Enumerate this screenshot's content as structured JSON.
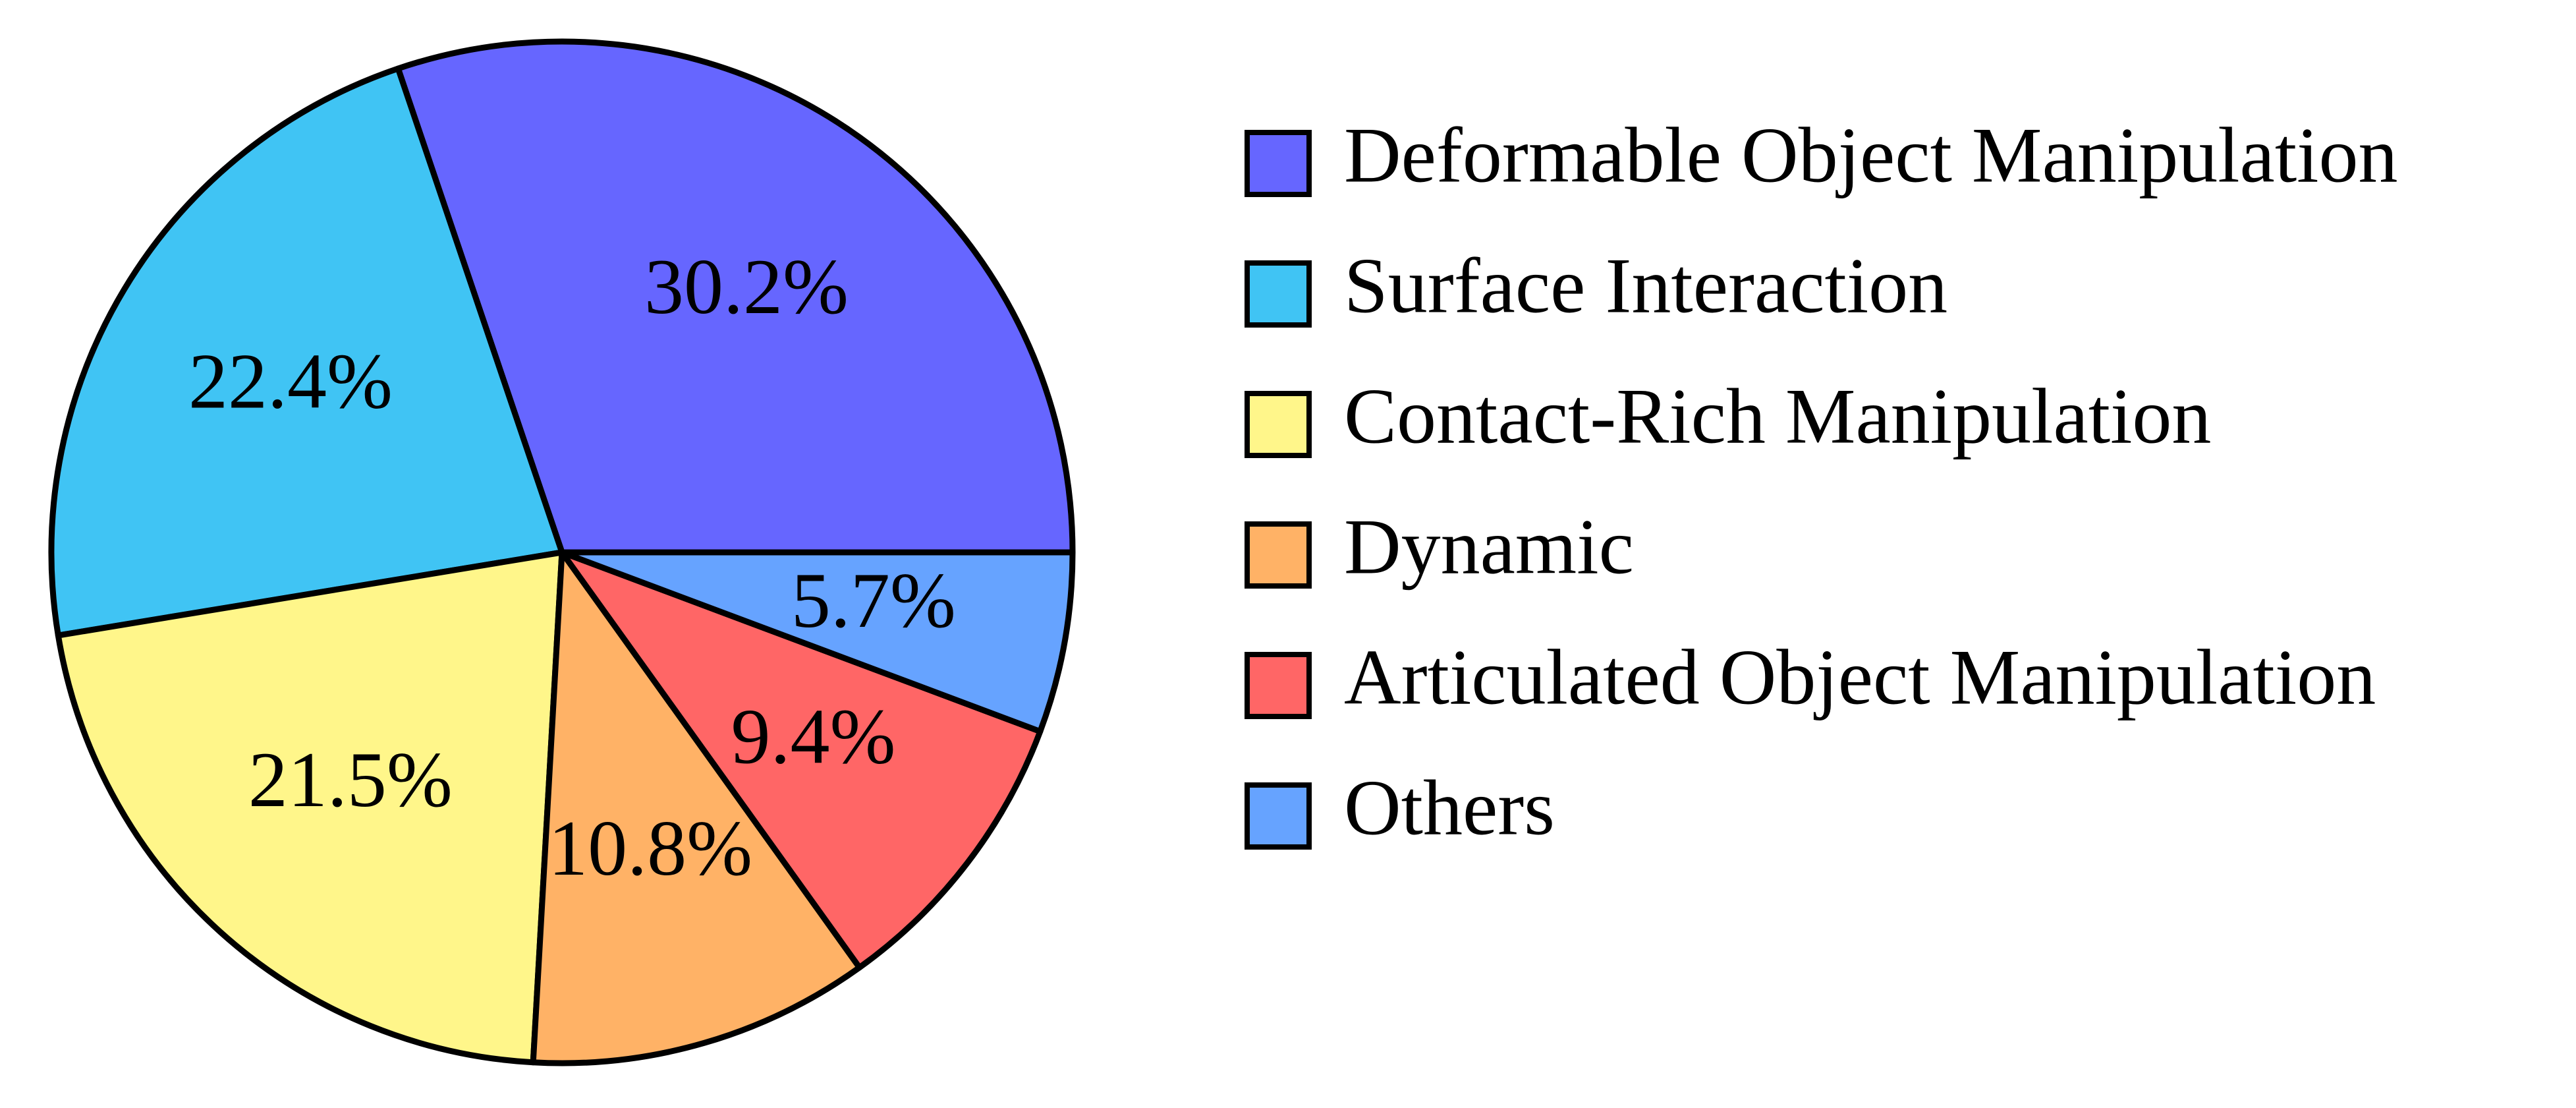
{
  "chart_data": {
    "type": "pie",
    "title": "",
    "legend_position": "right",
    "slices": [
      {
        "label": "Deformable Object Manipulation",
        "value": 30.2,
        "display": "30.2%",
        "color": "#6666ff"
      },
      {
        "label": "Surface Interaction",
        "value": 22.4,
        "display": "22.4%",
        "color": "#40c4f4"
      },
      {
        "label": "Contact-Rich Manipulation",
        "value": 21.5,
        "display": "21.5%",
        "color": "#fff68a"
      },
      {
        "label": "Dynamic",
        "value": 10.8,
        "display": "10.8%",
        "color": "#ffb266"
      },
      {
        "label": "Articulated Object Manipulation",
        "value": 9.4,
        "display": "9.4%",
        "color": "#ff6666"
      },
      {
        "label": "Others",
        "value": 5.7,
        "display": "5.7%",
        "color": "#66a3ff"
      }
    ],
    "start_angle_deg": 0,
    "direction": "counterclockwise"
  }
}
